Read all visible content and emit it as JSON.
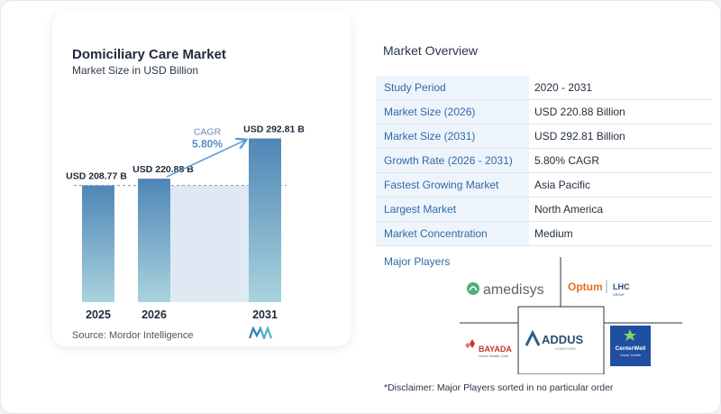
{
  "chart": {
    "title": "Domiciliary Care  Market",
    "subtitle": "Market Size in USD Billion",
    "source": "Source:  Mordor Intelligence",
    "cagr_label": "CAGR",
    "cagr_value": "5.80%"
  },
  "chart_data": {
    "type": "bar",
    "title": "Domiciliary Care  Market",
    "subtitle": "Market Size in USD Billion",
    "categories": [
      "2025",
      "2026",
      "2031"
    ],
    "values": [
      208.77,
      220.88,
      292.81
    ],
    "data_labels": [
      "USD 208.77 B",
      "USD 220.88 B",
      "USD 292.81 B"
    ],
    "ylim": [
      0,
      300
    ],
    "grid": false,
    "annotation": {
      "label": "CAGR",
      "value": "5.80%"
    },
    "colors": {
      "bar_top": "#4f86b6",
      "bar_bottom": "#a9d3dd",
      "shade": "#dfe9f3",
      "arrow": "#5b9bd5"
    }
  },
  "overview": {
    "title": "Market Overview",
    "rows": [
      {
        "key": "Study Period",
        "value": "2020 - 2031"
      },
      {
        "key": "Market Size (2026)",
        "value": "USD 220.88 Billion"
      },
      {
        "key": "Market Size (2031)",
        "value": "USD 292.81 Billion"
      },
      {
        "key": "Growth Rate (2026 - 2031)",
        "value": "5.80% CAGR"
      },
      {
        "key": "Fastest Growing Market",
        "value": "Asia Pacific"
      },
      {
        "key": "Largest Market",
        "value": "North America"
      },
      {
        "key": "Market Concentration",
        "value": "Medium"
      }
    ],
    "players_title": "Major Players",
    "players": {
      "amedisys": "amedisys",
      "optum": "Optum",
      "lhc": "LHC",
      "lhc_sub": "GROUP",
      "bayada": "BAYADA",
      "bayada_sub": "Home Health Care",
      "addus": "ADDUS",
      "addus_sub": "HOMECARE",
      "centerwell": "CenterWell",
      "centerwell_sub": "Home Health"
    },
    "disclaimer": "*Disclaimer: Major Players sorted in no particular order"
  }
}
